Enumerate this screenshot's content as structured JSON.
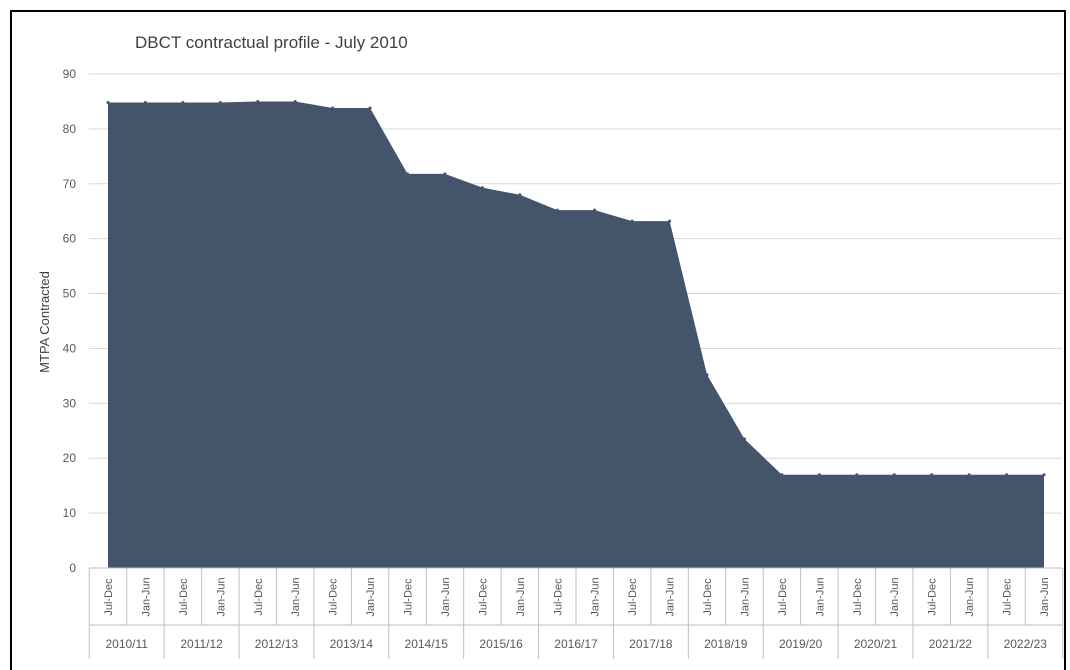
{
  "chart_data": {
    "type": "area",
    "title": "DBCT contractual profile - July 2010",
    "xlabel": "",
    "ylabel": "MTPA Contracted",
    "ylim": [
      0,
      90
    ],
    "yticks": [
      0,
      10,
      20,
      30,
      40,
      50,
      60,
      70,
      80,
      90
    ],
    "grid": true,
    "color": "#44546a",
    "categories": [
      "Jul-Dec",
      "Jan-Jun",
      "Jul-Dec",
      "Jan-Jun",
      "Jul-Dec",
      "Jan-Jun",
      "Jul-Dec",
      "Jan-Jun",
      "Jul-Dec",
      "Jan-Jun",
      "Jul-Dec",
      "Jan-Jun",
      "Jul-Dec",
      "Jan-Jun",
      "Jul-Dec",
      "Jan-Jun",
      "Jul-Dec",
      "Jan-Jun",
      "Jul-Dec",
      "Jan-Jun",
      "Jul-Dec",
      "Jan-Jun",
      "Jul-Dec",
      "Jan-Jun",
      "Jul-Dec",
      "Jan-Jun"
    ],
    "groups": [
      "2010/11",
      "2011/12",
      "2012/13",
      "2013/14",
      "2014/15",
      "2015/16",
      "2016/17",
      "2017/18",
      "2018/19",
      "2019/20",
      "2020/21",
      "2021/22",
      "2022/23"
    ],
    "values": [
      84.8,
      84.8,
      84.8,
      84.8,
      85.0,
      85.0,
      83.8,
      83.8,
      71.8,
      71.8,
      69.3,
      68.0,
      65.2,
      65.2,
      63.2,
      63.2,
      35.2,
      23.5,
      17.0,
      17.0,
      17.0,
      17.0,
      17.0,
      17.0,
      17.0,
      17.0
    ]
  }
}
